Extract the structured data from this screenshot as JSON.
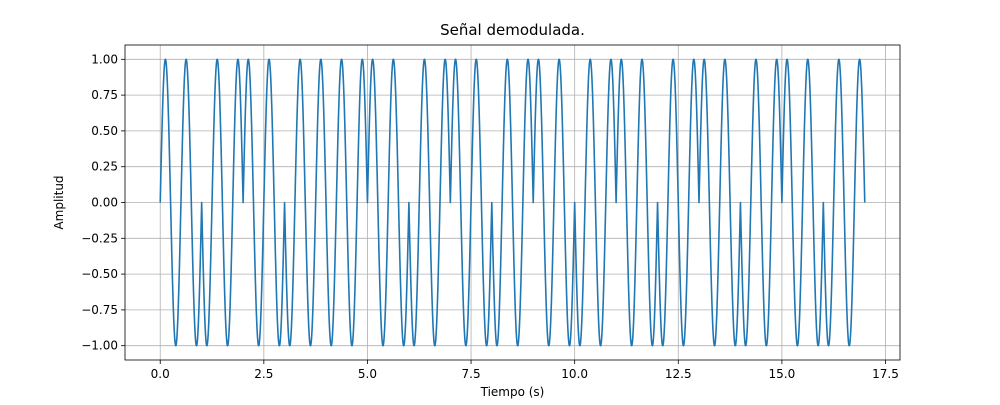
{
  "chart_data": {
    "type": "line",
    "title": "Señal demodulada.",
    "xlabel": "Tiempo (s)",
    "ylabel": "Amplitud",
    "xlim": [
      -0.85,
      17.85
    ],
    "ylim": [
      -1.1,
      1.1
    ],
    "xticks": [
      "0.0",
      "2.5",
      "5.0",
      "7.5",
      "10.0",
      "12.5",
      "15.0",
      "17.5"
    ],
    "yticks": [
      "−1.00",
      "−0.75",
      "−0.50",
      "−0.25",
      "0.00",
      "0.25",
      "0.50",
      "0.75",
      "1.00"
    ],
    "grid": true,
    "legend": "none",
    "signal": {
      "bits": [
        1,
        0,
        1,
        0,
        0,
        1,
        0,
        1,
        0,
        1,
        0,
        1,
        0,
        1,
        0,
        1,
        0
      ],
      "bit_duration_s": 1.0,
      "waveform": "sin",
      "phase_0_cycles_per_bit": 2,
      "phase_1_note": "inverted sine (180° phase shift)",
      "amplitude": 1.0,
      "samples": [
        {
          "t": 0.0,
          "y": 0.0
        },
        {
          "t": 0.25,
          "y": -1.0
        },
        {
          "t": 0.75,
          "y": 1.0
        },
        {
          "t": 1.0,
          "y": 0.0
        },
        {
          "t": 1.25,
          "y": 1.0
        },
        {
          "t": 1.75,
          "y": -1.0
        },
        {
          "t": 2.0,
          "y": 0.0
        },
        {
          "t": 2.25,
          "y": -1.0
        },
        {
          "t": 2.75,
          "y": 1.0
        },
        {
          "t": 3.0,
          "y": 0.0
        },
        {
          "t": 3.25,
          "y": -1.0
        },
        {
          "t": 3.75,
          "y": 1.0
        },
        {
          "t": 4.0,
          "y": 0.0
        },
        {
          "t": 4.25,
          "y": -1.0
        },
        {
          "t": 4.75,
          "y": 1.0
        },
        {
          "t": 5.0,
          "y": 0.0
        },
        {
          "t": 5.25,
          "y": 1.0
        },
        {
          "t": 5.75,
          "y": -1.0
        },
        {
          "t": 6.0,
          "y": 0.0
        },
        {
          "t": 6.25,
          "y": -1.0
        },
        {
          "t": 6.75,
          "y": 1.0
        },
        {
          "t": 7.0,
          "y": 0.0
        },
        {
          "t": 7.25,
          "y": 1.0
        },
        {
          "t": 7.75,
          "y": -1.0
        },
        {
          "t": 8.0,
          "y": 0.0
        },
        {
          "t": 8.25,
          "y": 1.0
        },
        {
          "t": 8.75,
          "y": -1.0
        },
        {
          "t": 9.0,
          "y": 0.0
        },
        {
          "t": 9.25,
          "y": -1.0
        },
        {
          "t": 9.75,
          "y": 1.0
        },
        {
          "t": 10.0,
          "y": 0.0
        },
        {
          "t": 10.25,
          "y": 1.0
        },
        {
          "t": 10.75,
          "y": -1.0
        },
        {
          "t": 11.0,
          "y": 0.0
        },
        {
          "t": 11.25,
          "y": -1.0
        },
        {
          "t": 11.75,
          "y": 1.0
        },
        {
          "t": 12.0,
          "y": 0.0
        },
        {
          "t": 12.25,
          "y": -1.0
        },
        {
          "t": 12.75,
          "y": 1.0
        },
        {
          "t": 13.0,
          "y": 0.0
        },
        {
          "t": 13.25,
          "y": -1.0
        },
        {
          "t": 13.75,
          "y": 1.0
        },
        {
          "t": 14.0,
          "y": 0.0
        },
        {
          "t": 14.25,
          "y": 1.0
        },
        {
          "t": 14.75,
          "y": -1.0
        },
        {
          "t": 15.0,
          "y": 0.0
        },
        {
          "t": 15.25,
          "y": -1.0
        },
        {
          "t": 15.75,
          "y": 1.0
        },
        {
          "t": 16.0,
          "y": 0.0
        },
        {
          "t": 16.25,
          "y": -1.0
        },
        {
          "t": 16.75,
          "y": 1.0
        },
        {
          "t": 17.0,
          "y": 0.0
        }
      ]
    },
    "colors": {
      "line": "#1f77b4",
      "grid": "#b0b0b0",
      "axes": "#000000"
    }
  }
}
